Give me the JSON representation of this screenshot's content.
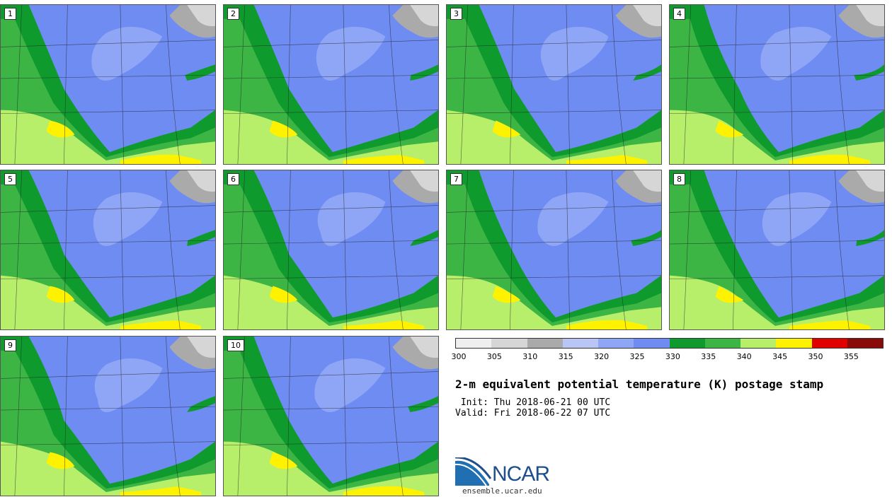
{
  "panels": [
    "1",
    "2",
    "3",
    "4",
    "5",
    "6",
    "7",
    "8",
    "9",
    "10"
  ],
  "colorbar": {
    "colors": [
      "#efefef",
      "#d6d6d6",
      "#aaaaaa",
      "#b9c6f5",
      "#8fa6f6",
      "#6f8cf2",
      "#0f9a2e",
      "#3cb545",
      "#b7ef6a",
      "#fff200",
      "#e00000",
      "#8a0a0a"
    ],
    "labels": [
      "300",
      "305",
      "310",
      "315",
      "320",
      "325",
      "330",
      "335",
      "340",
      "345",
      "350",
      "355"
    ]
  },
  "title": "2-m equivalent potential temperature (K) postage stamp",
  "init": " Init: Thu 2018-06-21 00 UTC",
  "valid": "Valid: Fri 2018-06-22 07 UTC",
  "logo": {
    "name": "NCAR",
    "url": "ensemble.ucar.edu"
  }
}
